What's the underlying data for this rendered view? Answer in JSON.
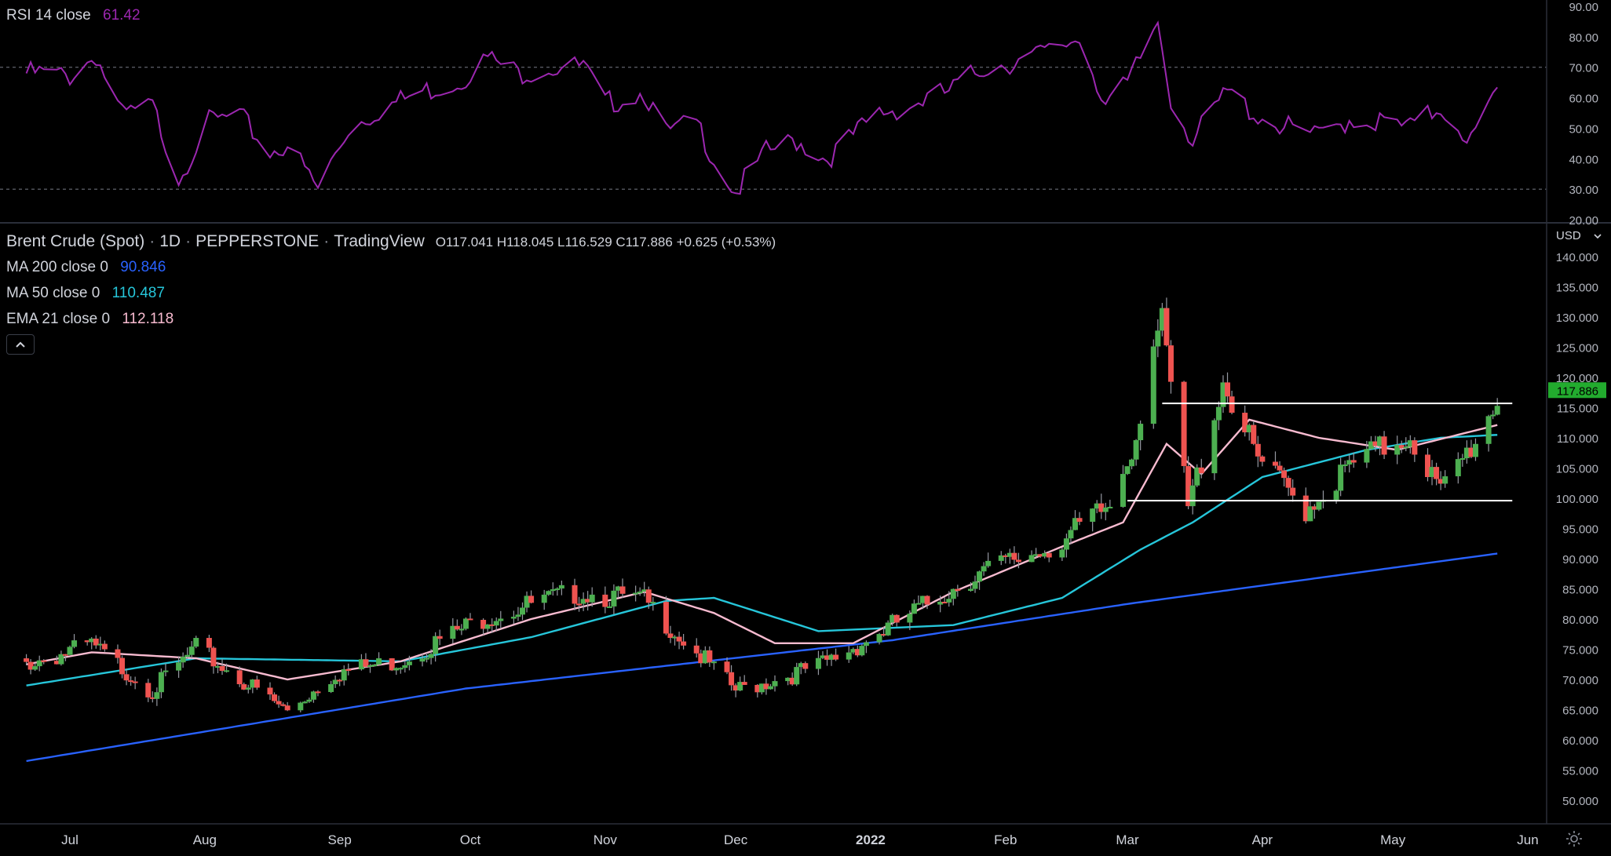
{
  "header": {
    "symbol": "Brent Crude (Spot)",
    "interval": "1D",
    "broker": "PEPPERSTONE",
    "platform": "TradingView",
    "ohlc": "O117.041 H118.045 L116.529 C117.886 +0.625 (+0.53%)"
  },
  "indicators": {
    "ma200": {
      "label": "MA 200 close 0",
      "value": "90.846",
      "color": "#2962ff"
    },
    "ma50": {
      "label": "MA 50 close 0",
      "value": "110.487",
      "color": "#26c6da"
    },
    "ema21": {
      "label": "EMA 21 close 0",
      "value": "112.118",
      "color": "#f8bbd0"
    },
    "rsi": {
      "label": "RSI 14 close",
      "value": "61.42",
      "color": "#9c27b0"
    }
  },
  "currency": "USD",
  "last_price_tag": "117.886",
  "colors": {
    "up": "#26a69a",
    "up_body": "#4caf50",
    "down": "#ef5350",
    "price_tag": "#22ab2e"
  },
  "chart_data": [
    {
      "type": "line",
      "name": "RSI pane",
      "series": [
        {
          "name": "RSI 14 close",
          "x": [
            "2021-06-24",
            "2021-07-01",
            "2021-07-07",
            "2021-07-13",
            "2021-07-20",
            "2021-07-26",
            "2021-08-02",
            "2021-08-09",
            "2021-08-16",
            "2021-08-20",
            "2021-08-27",
            "2021-09-03",
            "2021-09-10",
            "2021-09-20",
            "2021-09-28",
            "2021-10-05",
            "2021-10-12",
            "2021-10-19",
            "2021-10-27",
            "2021-11-01",
            "2021-11-10",
            "2021-11-15",
            "2021-11-22",
            "2021-11-26",
            "2021-12-01",
            "2021-12-08",
            "2021-12-15",
            "2021-12-22",
            "2022-01-03",
            "2022-01-11",
            "2022-01-19",
            "2022-01-27",
            "2022-02-04",
            "2022-02-11",
            "2022-02-18",
            "2022-02-24",
            "2022-03-01",
            "2022-03-08",
            "2022-03-11",
            "2022-03-16",
            "2022-03-24",
            "2022-03-31",
            "2022-04-07",
            "2022-04-14",
            "2022-04-21",
            "2022-04-28",
            "2022-05-05",
            "2022-05-12",
            "2022-05-19",
            "2022-05-25"
          ],
          "values": [
            68,
            67,
            74,
            54,
            57,
            34,
            52,
            54,
            42,
            45,
            30,
            50,
            56,
            62,
            65,
            73,
            68,
            70,
            70,
            58,
            62,
            48,
            52,
            40,
            29,
            42,
            46,
            40,
            55,
            58,
            62,
            70,
            72,
            75,
            80,
            58,
            64,
            85,
            60,
            46,
            62,
            54,
            50,
            47,
            53,
            52,
            50,
            57,
            46,
            61.42
          ]
        }
      ],
      "ylim": [
        20,
        90
      ],
      "yticks": [
        20,
        30,
        40,
        50,
        60,
        70,
        80,
        90
      ],
      "hlines": [
        30,
        70
      ]
    },
    {
      "type": "candlestick",
      "name": "Price pane",
      "ylim": [
        46,
        142
      ],
      "yticks": [
        50,
        55,
        60,
        65,
        70,
        75,
        80,
        85,
        90,
        95,
        100,
        105,
        110,
        115,
        120,
        125,
        130,
        135,
        140
      ],
      "close_anchors": {
        "x": [
          "2021-06-21",
          "2021-07-06",
          "2021-07-20",
          "2021-07-30",
          "2021-08-20",
          "2021-08-31",
          "2021-09-15",
          "2021-10-05",
          "2021-10-26",
          "2021-11-10",
          "2021-11-26",
          "2021-12-01",
          "2021-12-20",
          "2022-01-04",
          "2022-01-24",
          "2022-02-14",
          "2022-02-25",
          "2022-03-03",
          "2022-03-07",
          "2022-03-09",
          "2022-03-15",
          "2022-03-23",
          "2022-03-31",
          "2022-04-11",
          "2022-04-22",
          "2022-05-05",
          "2022-05-12",
          "2022-05-20",
          "2022-05-25"
        ],
        "values": [
          73.5,
          76.5,
          69,
          76,
          65.5,
          72,
          74,
          81.5,
          85.5,
          84,
          72.5,
          69,
          73,
          79,
          88,
          94,
          100,
          112,
          128,
          130,
          99.5,
          121,
          107.5,
          99.5,
          107,
          112,
          102,
          111,
          117.886
        ]
      },
      "overlays": [
        {
          "name": "MA 200 close 0",
          "x": [
            "2021-06-21",
            "2021-09-30",
            "2022-01-06",
            "2022-03-01",
            "2022-05-25"
          ],
          "values": [
            56.5,
            68.5,
            76.5,
            82.5,
            90.846
          ]
        },
        {
          "name": "MA 50 close 0",
          "x": [
            "2021-06-21",
            "2021-07-30",
            "2021-09-15",
            "2021-10-15",
            "2021-11-15",
            "2021-11-26",
            "2021-12-20",
            "2022-01-20",
            "2022-02-14",
            "2022-03-04",
            "2022-03-16",
            "2022-04-01",
            "2022-04-25",
            "2022-05-12",
            "2022-05-25"
          ],
          "values": [
            69,
            73.5,
            73,
            77,
            83,
            83.5,
            78,
            79,
            83.5,
            91.5,
            96,
            103.5,
            108,
            110,
            110.487
          ]
        },
        {
          "name": "EMA 21 close 0",
          "x": [
            "2021-06-21",
            "2021-07-06",
            "2021-07-30",
            "2021-08-20",
            "2021-09-15",
            "2021-10-15",
            "2021-11-10",
            "2021-11-26",
            "2021-12-10",
            "2021-12-28",
            "2022-01-20",
            "2022-02-14",
            "2022-02-28",
            "2022-03-10",
            "2022-03-18",
            "2022-03-29",
            "2022-04-14",
            "2022-05-02",
            "2022-05-25"
          ],
          "values": [
            72.5,
            74.5,
            73.5,
            70,
            73,
            80,
            84.5,
            81,
            76,
            76,
            84.5,
            92,
            96,
            109,
            104,
            113,
            110,
            108,
            112.118
          ]
        }
      ],
      "hlines": [
        {
          "value": 115.7,
          "from": "2022-03-09",
          "to": "2022-05-27"
        },
        {
          "value": 99.6,
          "from": "2022-03-01",
          "to": "2022-05-27"
        }
      ]
    }
  ],
  "x_axis": {
    "labels": [
      "Jul",
      "Aug",
      "Sep",
      "Oct",
      "Nov",
      "Dec",
      "2022",
      "Feb",
      "Mar",
      "Apr",
      "May",
      "Jun"
    ],
    "dates": [
      "2021-07-01",
      "2021-08-01",
      "2021-09-01",
      "2021-10-01",
      "2021-11-01",
      "2021-12-01",
      "2022-01-01",
      "2022-02-01",
      "2022-03-01",
      "2022-04-01",
      "2022-05-01",
      "2022-06-01"
    ]
  }
}
